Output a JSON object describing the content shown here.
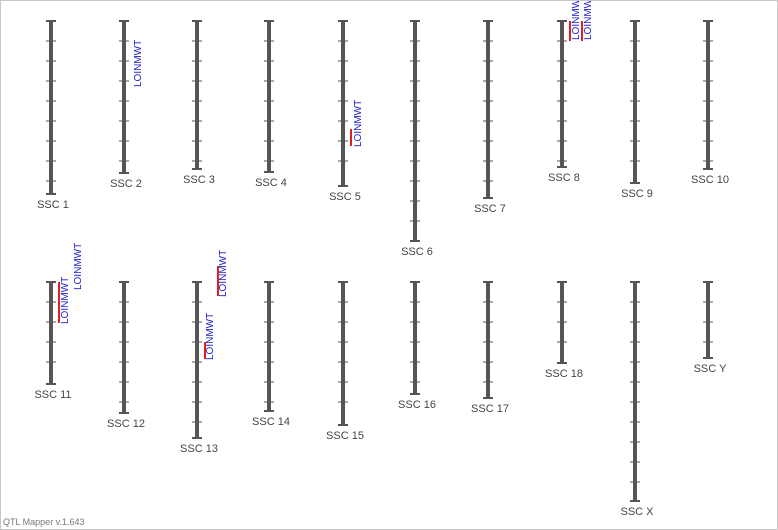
{
  "chromosomes": [
    {
      "label": "SSC 1",
      "qtls": []
    },
    {
      "label": "SSC 2",
      "qtls": [
        {
          "label": "LOINMWT"
        }
      ]
    },
    {
      "label": "SSC 3",
      "qtls": []
    },
    {
      "label": "SSC 4",
      "qtls": []
    },
    {
      "label": "SSC 5",
      "qtls": [
        {
          "label": "LOINMWT"
        }
      ]
    },
    {
      "label": "SSC 6",
      "qtls": []
    },
    {
      "label": "SSC 7",
      "qtls": []
    },
    {
      "label": "SSC 8",
      "qtls": [
        {
          "label": "LOINMWT"
        },
        {
          "label": "LOINMWT"
        }
      ]
    },
    {
      "label": "SSC 9",
      "qtls": []
    },
    {
      "label": "SSC 10",
      "qtls": []
    },
    {
      "label": "SSC 11",
      "qtls": [
        {
          "label": "LOINMWT"
        },
        {
          "label": "LOINMWT"
        }
      ]
    },
    {
      "label": "SSC 12",
      "qtls": []
    },
    {
      "label": "SSC 13",
      "qtls": [
        {
          "label": "LOINMWT"
        },
        {
          "label": "LOINMWT"
        }
      ]
    },
    {
      "label": "SSC 14",
      "qtls": []
    },
    {
      "label": "SSC 15",
      "qtls": []
    },
    {
      "label": "SSC 16",
      "qtls": []
    },
    {
      "label": "SSC 17",
      "qtls": []
    },
    {
      "label": "SSC 18",
      "qtls": []
    },
    {
      "label": "SSC X",
      "qtls": []
    },
    {
      "label": "SSC Y",
      "qtls": []
    }
  ],
  "footer": "QTL Mapper v.1.643"
}
